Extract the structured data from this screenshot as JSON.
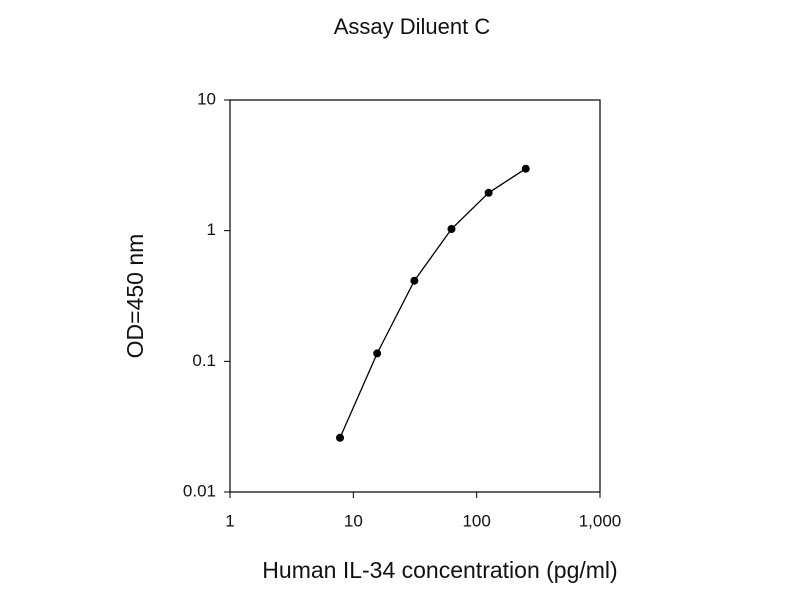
{
  "chart_data": {
    "type": "line",
    "title": "Assay Diluent C",
    "x_label": "Human IL-34 concentration (pg/ml)",
    "y_label": "OD=450 nm",
    "x": [
      7.8,
      15.6,
      31.25,
      62.5,
      125,
      250
    ],
    "series": [
      {
        "color": "#000000",
        "values": [
          0.026,
          0.115,
          0.414,
          1.03,
          1.95,
          2.98
        ]
      }
    ],
    "xlim": [
      1,
      1000
    ],
    "xticks": [
      1,
      10,
      100,
      {
        "value": 1000,
        "label": "1,000"
      }
    ],
    "ylim": [
      0.01,
      10
    ],
    "yticks": [
      0.01,
      0.1,
      1,
      10
    ],
    "xscale": "log",
    "yscale": "log",
    "grid": false
  }
}
